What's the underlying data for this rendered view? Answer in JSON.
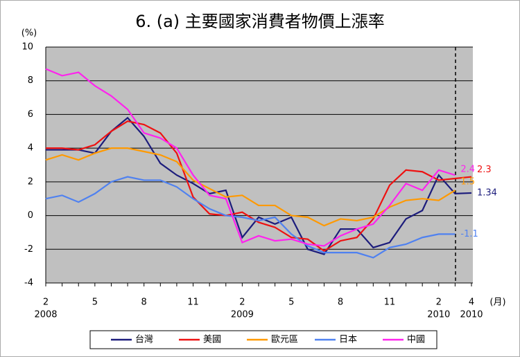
{
  "chart_data": {
    "type": "line",
    "title": "6. (a)  主要國家消費者物價上漲率",
    "y_label": "(%)",
    "x_unit_label": "(月)",
    "categories": [
      "2",
      null,
      null,
      "5",
      null,
      null,
      "8",
      null,
      null,
      "11",
      null,
      null,
      "2",
      null,
      null,
      "5",
      null,
      null,
      "8",
      null,
      null,
      "11",
      null,
      null,
      "2",
      null,
      "4"
    ],
    "year_labels": [
      "2008",
      null,
      null,
      null,
      null,
      null,
      null,
      null,
      null,
      null,
      null,
      null,
      "2009",
      null,
      null,
      null,
      null,
      null,
      null,
      null,
      null,
      null,
      null,
      null,
      "2010",
      null,
      "2010"
    ],
    "ylim": [
      -4,
      10
    ],
    "yticks": [
      -4,
      -2,
      0,
      2,
      4,
      6,
      8,
      10
    ],
    "grid": true,
    "legend": "bottom",
    "series": [
      {
        "name": "台灣",
        "color": "#1c1c7c",
        "values": [
          3.9,
          3.9,
          3.9,
          3.7,
          5.0,
          5.8,
          4.7,
          3.1,
          2.4,
          1.9,
          1.3,
          1.5,
          -1.3,
          -0.1,
          -0.5,
          -0.1,
          -2.0,
          -2.3,
          -0.8,
          -0.8,
          -1.9,
          -1.6,
          -0.2,
          0.3,
          2.4,
          1.3,
          1.34
        ],
        "value_labels": [
          null,
          null,
          null,
          null,
          null,
          null,
          null,
          null,
          null,
          null,
          null,
          null,
          null,
          null,
          null,
          null,
          null,
          null,
          null,
          null,
          null,
          null,
          null,
          null,
          null,
          null,
          "1.34"
        ]
      },
      {
        "name": "美國",
        "color": "#ee1111",
        "values": [
          4.0,
          4.0,
          3.9,
          4.2,
          5.0,
          5.6,
          5.4,
          4.9,
          3.7,
          1.1,
          0.1,
          0.0,
          0.2,
          -0.4,
          -0.7,
          -1.3,
          -1.4,
          -2.1,
          -1.5,
          -1.3,
          -0.2,
          1.8,
          2.7,
          2.6,
          2.1,
          2.2,
          2.3
        ],
        "value_labels": [
          null,
          null,
          null,
          null,
          null,
          null,
          null,
          null,
          null,
          null,
          null,
          null,
          null,
          null,
          null,
          null,
          null,
          null,
          null,
          null,
          null,
          null,
          null,
          null,
          null,
          null,
          "2.3"
        ]
      },
      {
        "name": "歐元區",
        "color": "#ff9900",
        "values": [
          3.3,
          3.6,
          3.3,
          3.7,
          4.0,
          4.0,
          3.8,
          3.6,
          3.2,
          2.1,
          1.6,
          1.1,
          1.2,
          0.6,
          0.6,
          0.0,
          -0.1,
          -0.6,
          -0.2,
          -0.3,
          -0.1,
          0.5,
          0.9,
          1.0,
          0.9,
          1.5,
          null
        ],
        "value_labels": [
          null,
          null,
          null,
          null,
          null,
          null,
          null,
          null,
          null,
          null,
          null,
          null,
          null,
          null,
          null,
          null,
          null,
          null,
          null,
          null,
          null,
          null,
          null,
          null,
          null,
          "1.5",
          null
        ]
      },
      {
        "name": "日本",
        "color": "#4f81f0",
        "values": [
          1.0,
          1.2,
          0.8,
          1.3,
          2.0,
          2.3,
          2.1,
          2.1,
          1.7,
          1.0,
          0.4,
          0.0,
          -0.1,
          -0.3,
          -0.1,
          -1.1,
          -1.8,
          -2.2,
          -2.2,
          -2.2,
          -2.5,
          -1.9,
          -1.7,
          -1.3,
          -1.1,
          -1.1,
          null
        ],
        "value_labels": [
          null,
          null,
          null,
          null,
          null,
          null,
          null,
          null,
          null,
          null,
          null,
          null,
          null,
          null,
          null,
          null,
          null,
          null,
          null,
          null,
          null,
          null,
          null,
          null,
          null,
          "-1.1",
          null
        ]
      },
      {
        "name": "中國",
        "color": "#ff22ee",
        "values": [
          8.7,
          8.3,
          8.5,
          7.7,
          7.1,
          6.3,
          4.9,
          4.6,
          4.0,
          2.4,
          1.2,
          1.0,
          -1.6,
          -1.2,
          -1.5,
          -1.4,
          -1.7,
          -1.8,
          -1.2,
          -0.8,
          -0.5,
          0.6,
          1.9,
          1.5,
          2.7,
          2.4,
          null
        ],
        "value_labels": [
          null,
          null,
          null,
          null,
          null,
          null,
          null,
          null,
          null,
          null,
          null,
          null,
          null,
          null,
          null,
          null,
          null,
          null,
          null,
          null,
          null,
          null,
          null,
          null,
          null,
          "2.4",
          null
        ]
      }
    ]
  }
}
